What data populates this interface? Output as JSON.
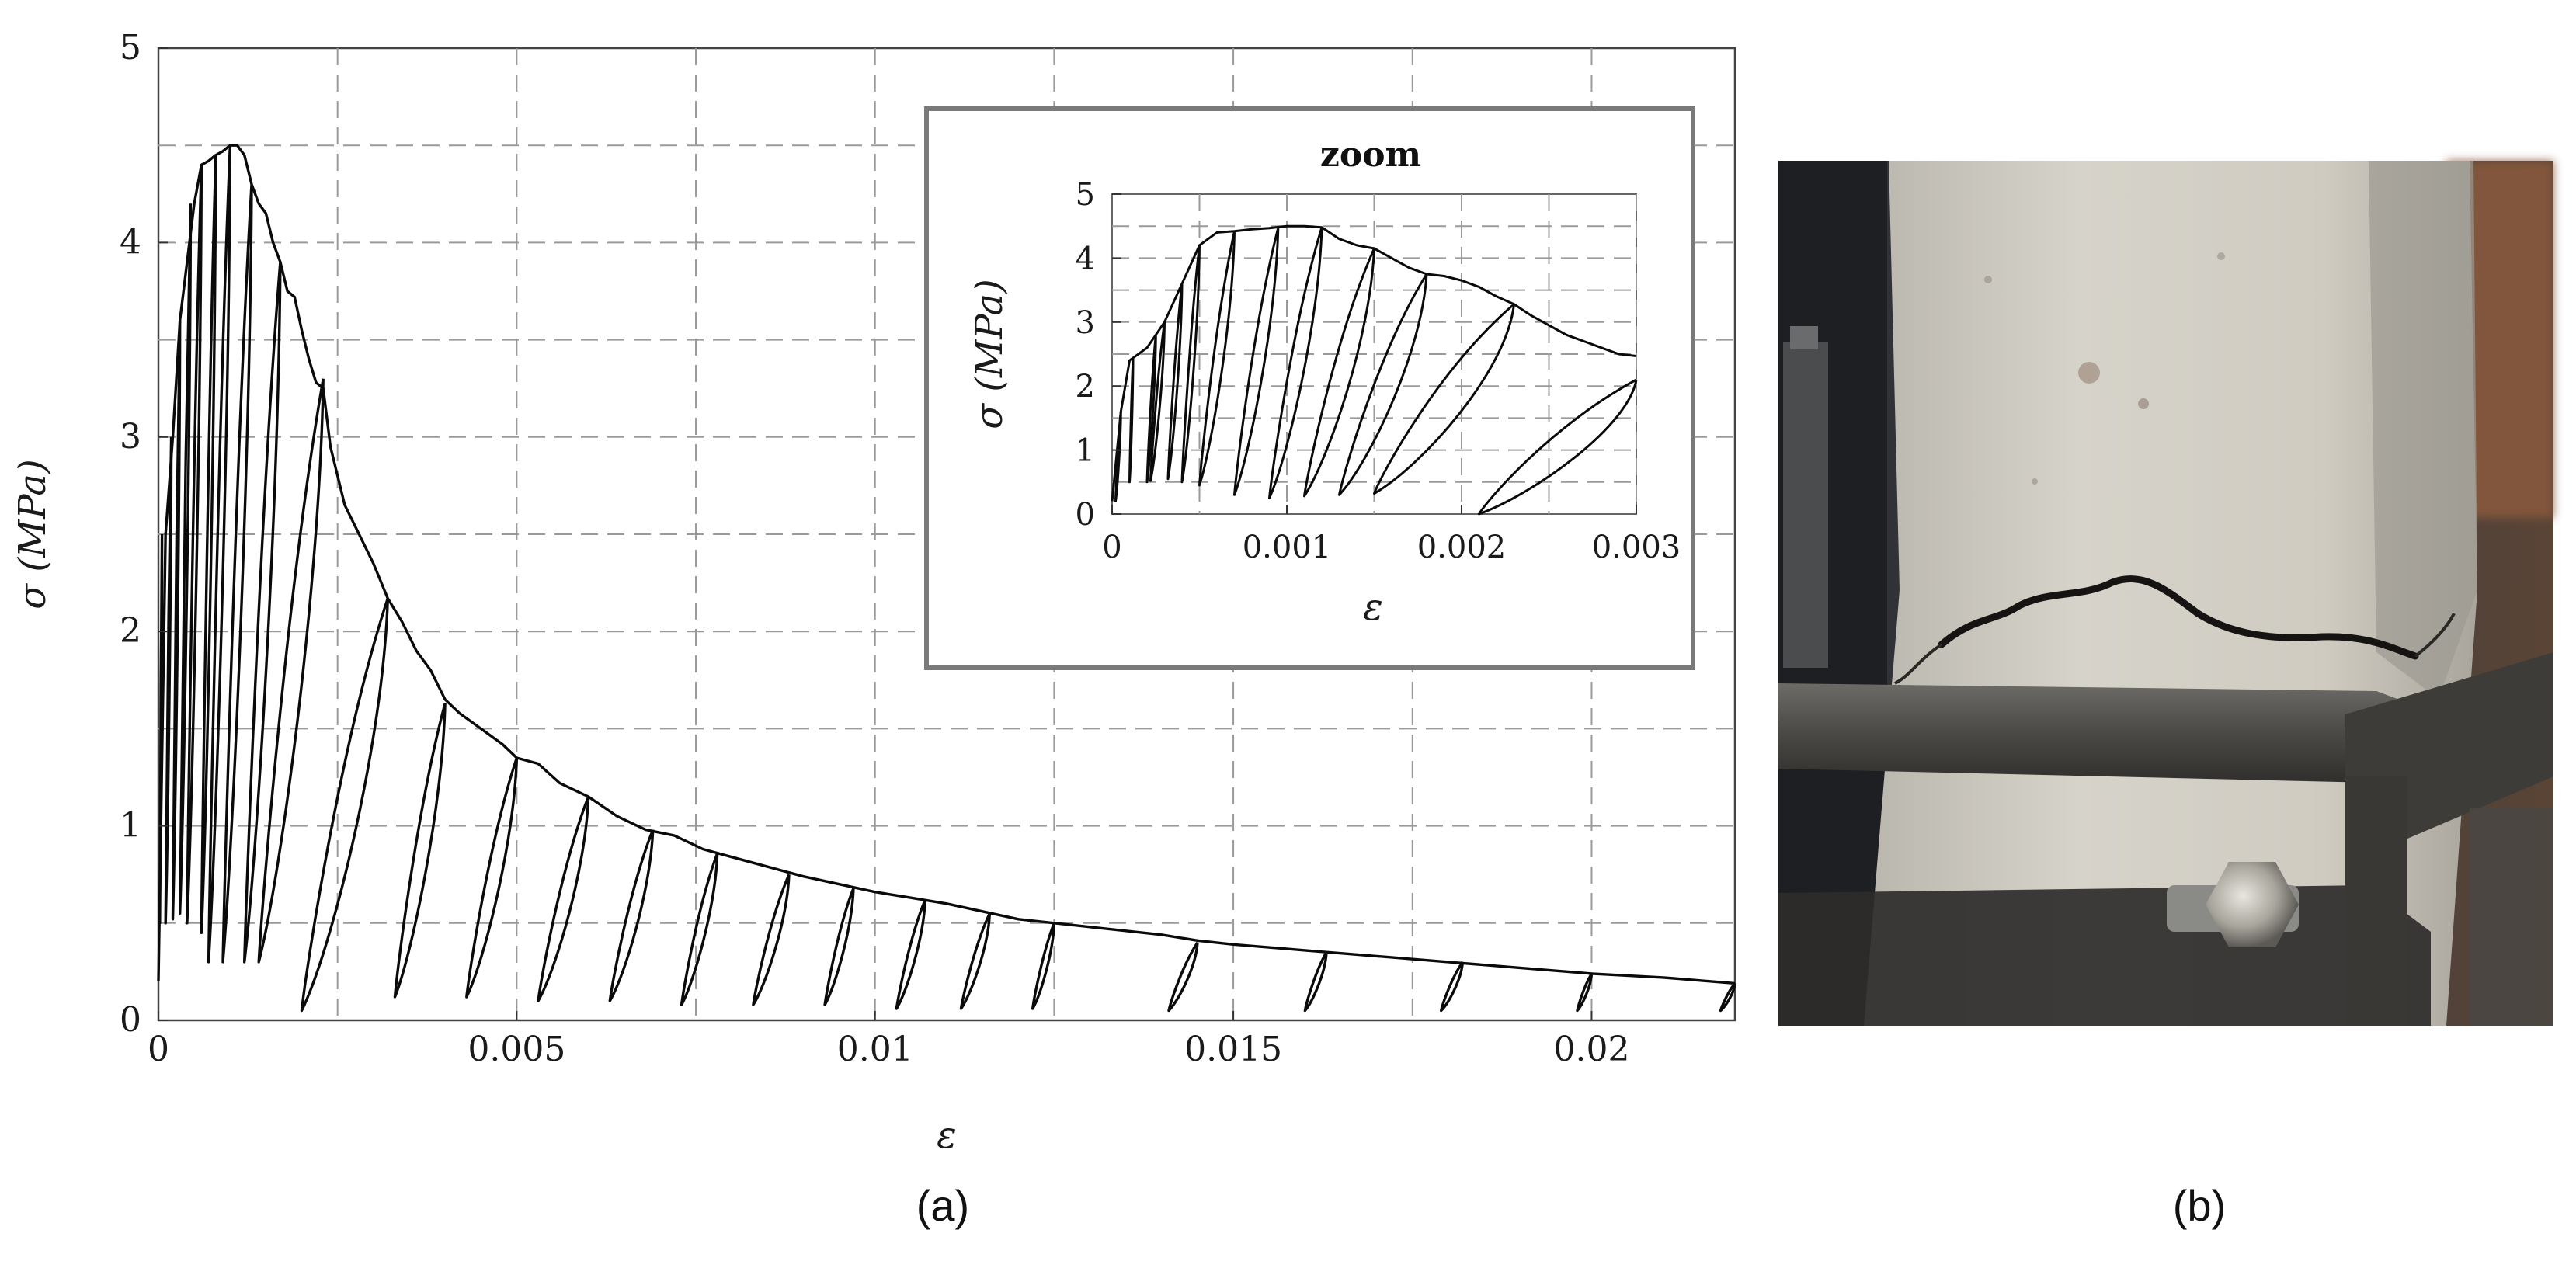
{
  "chart_data": [
    {
      "type": "line",
      "panel_label": "(a)",
      "xlabel": "ε",
      "ylabel": "σ (MPa)",
      "xlim": [
        0,
        0.022
      ],
      "ylim": [
        0,
        5
      ],
      "grid": true,
      "xtick_labels": [
        "0",
        "0.005",
        "0.01",
        "0.015",
        "0.02"
      ],
      "xtick_values": [
        0,
        0.005,
        0.01,
        0.015,
        0.02
      ],
      "ytick_labels": [
        "0",
        "1",
        "2",
        "3",
        "4",
        "5"
      ],
      "ytick_values": [
        0,
        1,
        2,
        3,
        4,
        5
      ],
      "series": [
        {
          "envelope": {
            "x": [
              0,
              0.0001,
              0.0002,
              0.0003,
              0.0004,
              0.0005,
              0.0006,
              0.0007,
              0.0008,
              0.0009,
              0.001,
              0.0011,
              0.0012,
              0.0013,
              0.0014,
              0.0015,
              0.0016,
              0.0017,
              0.0018,
              0.0019,
              0.002,
              0.0021,
              0.0022,
              0.0023,
              0.0024,
              0.0025,
              0.0026,
              0.0028,
              0.003,
              0.0032,
              0.0034,
              0.0036,
              0.0038,
              0.004,
              0.0042,
              0.0045,
              0.0048,
              0.005,
              0.0053,
              0.0056,
              0.006,
              0.0064,
              0.0068,
              0.0072,
              0.0076,
              0.008,
              0.0085,
              0.009,
              0.0095,
              0.01,
              0.0105,
              0.011,
              0.0115,
              0.012,
              0.0125,
              0.013,
              0.0135,
              0.014,
              0.0145,
              0.015,
              0.016,
              0.017,
              0.018,
              0.019,
              0.02,
              0.021,
              0.022
            ],
            "y": [
              0.2,
              2.5,
              3.0,
              3.6,
              3.9,
              4.2,
              4.4,
              4.42,
              4.45,
              4.47,
              4.5,
              4.5,
              4.45,
              4.3,
              4.2,
              4.15,
              4.0,
              3.9,
              3.75,
              3.72,
              3.55,
              3.4,
              3.28,
              3.25,
              2.95,
              2.8,
              2.65,
              2.5,
              2.35,
              2.17,
              2.05,
              1.9,
              1.8,
              1.65,
              1.58,
              1.5,
              1.42,
              1.35,
              1.32,
              1.22,
              1.15,
              1.05,
              0.98,
              0.95,
              0.88,
              0.84,
              0.79,
              0.74,
              0.7,
              0.66,
              0.63,
              0.6,
              0.56,
              0.52,
              0.5,
              0.48,
              0.46,
              0.44,
              0.41,
              0.39,
              0.36,
              0.33,
              0.3,
              0.27,
              0.24,
              0.22,
              0.19
            ]
          },
          "unloading_cycles": [
            {
              "x_start": 5e-05,
              "y_start": 2.5,
              "x_end": 2e-05,
              "y_end": 0.5
            },
            {
              "x_start": 0.00018,
              "y_start": 3.0,
              "x_end": 0.0001,
              "y_end": 0.5
            },
            {
              "x_start": 0.0003,
              "y_start": 3.6,
              "x_end": 0.0002,
              "y_end": 0.52
            },
            {
              "x_start": 0.00045,
              "y_start": 4.2,
              "x_end": 0.0003,
              "y_end": 0.55
            },
            {
              "x_start": 0.0006,
              "y_start": 4.4,
              "x_end": 0.0004,
              "y_end": 0.5
            },
            {
              "x_start": 0.0008,
              "y_start": 4.45,
              "x_end": 0.0006,
              "y_end": 0.45
            },
            {
              "x_start": 0.001,
              "y_start": 4.5,
              "x_end": 0.0007,
              "y_end": 0.3
            },
            {
              "x_start": 0.0013,
              "y_start": 4.3,
              "x_end": 0.0009,
              "y_end": 0.3
            },
            {
              "x_start": 0.0017,
              "y_start": 3.9,
              "x_end": 0.0012,
              "y_end": 0.3
            },
            {
              "x_start": 0.0023,
              "y_start": 3.3,
              "x_end": 0.0014,
              "y_end": 0.3
            },
            {
              "x_start": 0.0032,
              "y_start": 2.17,
              "x_end": 0.002,
              "y_end": 0.05
            },
            {
              "x_start": 0.004,
              "y_start": 1.63,
              "x_end": 0.0033,
              "y_end": 0.12
            },
            {
              "x_start": 0.005,
              "y_start": 1.35,
              "x_end": 0.0043,
              "y_end": 0.12
            },
            {
              "x_start": 0.006,
              "y_start": 1.15,
              "x_end": 0.0053,
              "y_end": 0.1
            },
            {
              "x_start": 0.0069,
              "y_start": 0.98,
              "x_end": 0.0063,
              "y_end": 0.1
            },
            {
              "x_start": 0.0078,
              "y_start": 0.86,
              "x_end": 0.0073,
              "y_end": 0.08
            },
            {
              "x_start": 0.0088,
              "y_start": 0.75,
              "x_end": 0.0083,
              "y_end": 0.08
            },
            {
              "x_start": 0.0097,
              "y_start": 0.68,
              "x_end": 0.0093,
              "y_end": 0.08
            },
            {
              "x_start": 0.0107,
              "y_start": 0.62,
              "x_end": 0.0103,
              "y_end": 0.06
            },
            {
              "x_start": 0.0116,
              "y_start": 0.55,
              "x_end": 0.0112,
              "y_end": 0.06
            },
            {
              "x_start": 0.0125,
              "y_start": 0.5,
              "x_end": 0.0122,
              "y_end": 0.06
            },
            {
              "x_start": 0.0145,
              "y_start": 0.4,
              "x_end": 0.0141,
              "y_end": 0.05
            },
            {
              "x_start": 0.0163,
              "y_start": 0.35,
              "x_end": 0.016,
              "y_end": 0.05
            },
            {
              "x_start": 0.0182,
              "y_start": 0.3,
              "x_end": 0.0179,
              "y_end": 0.05
            },
            {
              "x_start": 0.02,
              "y_start": 0.24,
              "x_end": 0.0198,
              "y_end": 0.05
            },
            {
              "x_start": 0.022,
              "y_start": 0.19,
              "x_end": 0.0218,
              "y_end": 0.05
            }
          ]
        }
      ]
    },
    {
      "type": "line",
      "title": "zoom",
      "xlabel": "ε",
      "ylabel": "σ (MPa)",
      "xlim": [
        0,
        0.003
      ],
      "ylim": [
        0,
        5
      ],
      "grid": true,
      "xtick_labels": [
        "0",
        "0.001",
        "0.002",
        "0.003"
      ],
      "xtick_values": [
        0,
        0.001,
        0.002,
        0.003
      ],
      "ytick_labels": [
        "0",
        "1",
        "2",
        "3",
        "4",
        "5"
      ],
      "ytick_values": [
        0,
        1,
        2,
        3,
        4,
        5
      ],
      "series": [
        {
          "envelope": {
            "x": [
              0,
              5e-05,
              0.0001,
              0.00015,
              0.0002,
              0.0003,
              0.0004,
              0.0005,
              0.0006,
              0.0007,
              0.0008,
              0.0009,
              0.001,
              0.0011,
              0.0012,
              0.0013,
              0.0014,
              0.0015,
              0.0016,
              0.0017,
              0.0018,
              0.0019,
              0.002,
              0.0021,
              0.0022,
              0.0023,
              0.0024,
              0.0025,
              0.0026,
              0.0027,
              0.0028,
              0.0029,
              0.003
            ],
            "y": [
              0.2,
              1.6,
              2.4,
              2.5,
              2.6,
              3.0,
              3.6,
              4.2,
              4.4,
              4.42,
              4.45,
              4.47,
              4.5,
              4.5,
              4.48,
              4.3,
              4.2,
              4.15,
              4.0,
              3.85,
              3.75,
              3.72,
              3.65,
              3.55,
              3.4,
              3.28,
              3.1,
              2.95,
              2.8,
              2.7,
              2.6,
              2.5,
              2.47
            ]
          },
          "unloading_cycles": [
            {
              "x_start": 5e-05,
              "y_start": 1.6,
              "x_end": 2e-05,
              "y_end": 0.2
            },
            {
              "x_start": 0.00012,
              "y_start": 2.45,
              "x_end": 0.0001,
              "y_end": 0.5
            },
            {
              "x_start": 0.00025,
              "y_start": 2.8,
              "x_end": 0.0002,
              "y_end": 0.5
            },
            {
              "x_start": 0.0003,
              "y_start": 3.0,
              "x_end": 0.00022,
              "y_end": 0.52
            },
            {
              "x_start": 0.0004,
              "y_start": 3.6,
              "x_end": 0.00032,
              "y_end": 0.55
            },
            {
              "x_start": 0.0005,
              "y_start": 4.2,
              "x_end": 0.0004,
              "y_end": 0.5
            },
            {
              "x_start": 0.0007,
              "y_start": 4.42,
              "x_end": 0.0005,
              "y_end": 0.45
            },
            {
              "x_start": 0.00095,
              "y_start": 4.47,
              "x_end": 0.0007,
              "y_end": 0.3
            },
            {
              "x_start": 0.0012,
              "y_start": 4.48,
              "x_end": 0.0009,
              "y_end": 0.25
            },
            {
              "x_start": 0.0015,
              "y_start": 4.15,
              "x_end": 0.0011,
              "y_end": 0.28
            },
            {
              "x_start": 0.0018,
              "y_start": 3.75,
              "x_end": 0.0013,
              "y_end": 0.3
            },
            {
              "x_start": 0.0023,
              "y_start": 3.28,
              "x_end": 0.0015,
              "y_end": 0.32
            },
            {
              "x_start": 0.003,
              "y_start": 2.1,
              "x_end": 0.0021,
              "y_end": 0.0
            }
          ]
        }
      ]
    }
  ],
  "panel_b": {
    "panel_label": "(b)"
  }
}
